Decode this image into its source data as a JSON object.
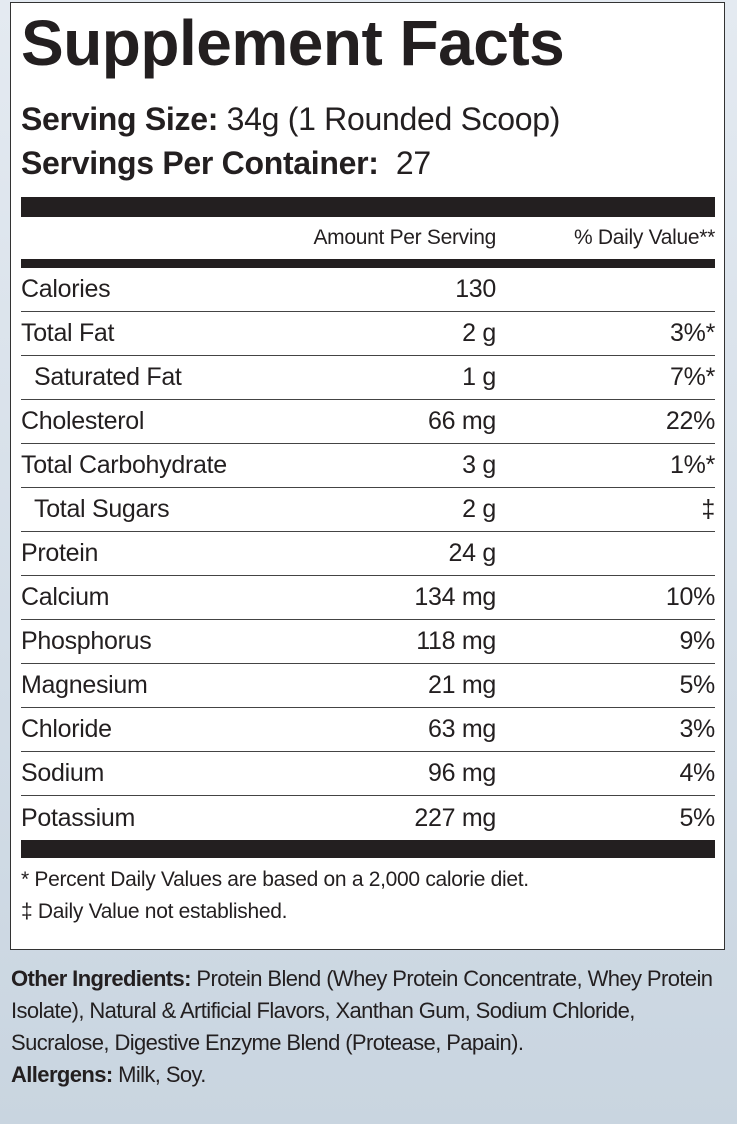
{
  "title": "Supplement Facts",
  "serving_size": {
    "label": "Serving Size:",
    "value": "34g (1 Rounded Scoop)"
  },
  "servings_per_container": {
    "label": "Servings Per Container:",
    "value": "27"
  },
  "header": {
    "amount": "Amount Per Serving",
    "daily_value": "% Daily Value**"
  },
  "rows": [
    {
      "name": "Calories",
      "amount": "130",
      "dv": "",
      "indent": false
    },
    {
      "name": "Total Fat",
      "amount": "2 g",
      "dv": "3%*",
      "indent": false
    },
    {
      "name": "Saturated Fat",
      "amount": "1 g",
      "dv": "7%*",
      "indent": true
    },
    {
      "name": "Cholesterol",
      "amount": "66 mg",
      "dv": "22%",
      "indent": false
    },
    {
      "name": "Total Carbohydrate",
      "amount": "3 g",
      "dv": "1%*",
      "indent": false
    },
    {
      "name": "Total Sugars",
      "amount": "2 g",
      "dv": "‡",
      "indent": true
    },
    {
      "name": "Protein",
      "amount": "24 g",
      "dv": "",
      "indent": false
    },
    {
      "name": "Calcium",
      "amount": "134 mg",
      "dv": "10%",
      "indent": false
    },
    {
      "name": "Phosphorus",
      "amount": "118 mg",
      "dv": "9%",
      "indent": false
    },
    {
      "name": "Magnesium",
      "amount": "21 mg",
      "dv": "5%",
      "indent": false
    },
    {
      "name": "Chloride",
      "amount": "63 mg",
      "dv": "3%",
      "indent": false
    },
    {
      "name": "Sodium",
      "amount": "96 mg",
      "dv": "4%",
      "indent": false
    },
    {
      "name": "Potassium",
      "amount": "227 mg",
      "dv": "5%",
      "indent": false
    }
  ],
  "footnotes": [
    "* Percent Daily Values are based on a 2,000 calorie diet.",
    "‡ Daily Value not established."
  ],
  "other_ingredients": {
    "label": "Other Ingredients:",
    "text": "Protein Blend (Whey Protein Concentrate, Whey Protein Isolate), Natural & Artificial Flavors, Xanthan Gum, Sodium Chloride, Sucralose, Digestive Enzyme Blend (Protease, Papain)."
  },
  "allergens": {
    "label": "Allergens:",
    "text": "Milk, Soy."
  }
}
